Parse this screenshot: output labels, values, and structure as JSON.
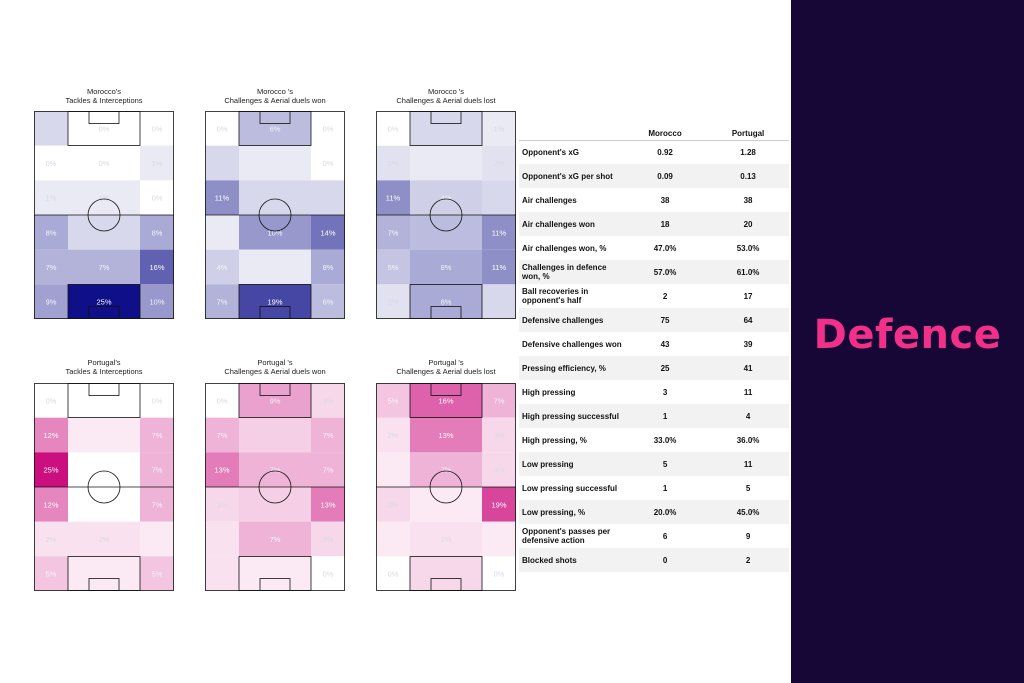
{
  "section_title": "Defence",
  "colors": {
    "panel_bg": "#170736",
    "title_accent": "#f2308a",
    "morocco_scale": "#0f0f8a",
    "portugal_scale": "#cc0f7f"
  },
  "chart_data": [
    {
      "type": "heatmap",
      "team": "Morocco",
      "title": "Morocco's\nTackles & Interceptions",
      "grid": [
        [
          null,
          "0%",
          "0%"
        ],
        [
          "0%",
          "0%",
          "1%"
        ],
        [
          "1%",
          "1%",
          "0%"
        ],
        [
          "8%",
          "3%",
          "8%"
        ],
        [
          "7%",
          "7%",
          "16%"
        ],
        [
          "9%",
          "25%",
          "10%"
        ]
      ],
      "values": [
        [
          3,
          0,
          0
        ],
        [
          0,
          0,
          1
        ],
        [
          1,
          1,
          0
        ],
        [
          8,
          3,
          8
        ],
        [
          7,
          7,
          16
        ],
        [
          9,
          25,
          10
        ]
      ]
    },
    {
      "type": "heatmap",
      "team": "Morocco",
      "title": "Morocco 's\nChallenges & Aerial duels won",
      "grid": [
        [
          "0%",
          "6%",
          "0%"
        ],
        [
          "3%",
          "",
          "0%"
        ],
        [
          "11%",
          "3%",
          "3%"
        ],
        [
          "",
          "10%",
          "14%"
        ],
        [
          "4%",
          "",
          "8%"
        ],
        [
          "7%",
          "19%",
          "6%"
        ]
      ],
      "values": [
        [
          0,
          6,
          0
        ],
        [
          3,
          1,
          0
        ],
        [
          11,
          3,
          3
        ],
        [
          1,
          10,
          14
        ],
        [
          4,
          1,
          8
        ],
        [
          7,
          19,
          6
        ]
      ]
    },
    {
      "type": "heatmap",
      "team": "Morocco",
      "title": "Morocco 's\nChallenges & Aerial duels lost",
      "grid": [
        [
          "0%",
          "3%",
          "1%"
        ],
        [
          "2%",
          "",
          "2%"
        ],
        [
          "11%",
          "4%",
          "3%"
        ],
        [
          "7%",
          "",
          "11%"
        ],
        [
          "5%",
          "8%",
          "11%"
        ],
        [
          "2%",
          "8%",
          "3%"
        ]
      ],
      "values": [
        [
          0,
          3,
          1
        ],
        [
          2,
          1,
          2
        ],
        [
          11,
          4,
          3
        ],
        [
          7,
          6,
          11
        ],
        [
          5,
          8,
          11
        ],
        [
          2,
          8,
          3
        ]
      ]
    },
    {
      "type": "heatmap",
      "team": "Portugal",
      "title": "Portugal's\nTackles & Interceptions",
      "grid": [
        [
          "0%",
          "",
          "0%"
        ],
        [
          "12%",
          "",
          "7%"
        ],
        [
          "25%",
          "",
          "7%"
        ],
        [
          "12%",
          "",
          "7%"
        ],
        [
          "2%",
          "2%",
          ""
        ],
        [
          "5%",
          "",
          "5%"
        ]
      ],
      "values": [
        [
          0,
          0,
          0
        ],
        [
          12,
          1,
          7
        ],
        [
          25,
          0,
          7
        ],
        [
          12,
          0,
          7
        ],
        [
          2,
          2,
          1
        ],
        [
          5,
          1,
          5
        ]
      ]
    },
    {
      "type": "heatmap",
      "team": "Portugal",
      "title": "Portugal 's\nChallenges & Aerial duels won",
      "grid": [
        [
          "0%",
          "9%",
          "3%"
        ],
        [
          "7%",
          "",
          "7%"
        ],
        [
          "13%",
          "7%",
          "7%"
        ],
        [
          "3%",
          "",
          "13%"
        ],
        [
          "",
          "7%",
          "3%"
        ],
        [
          "",
          "",
          "0%"
        ]
      ],
      "values": [
        [
          0,
          9,
          3
        ],
        [
          7,
          4,
          7
        ],
        [
          13,
          7,
          7
        ],
        [
          3,
          4,
          13
        ],
        [
          2,
          7,
          3
        ],
        [
          2,
          1,
          0
        ]
      ]
    },
    {
      "type": "heatmap",
      "team": "Portugal",
      "title": "Portugal 's\nChallenges & Aerial duels lost",
      "grid": [
        [
          "5%",
          "16%",
          "7%"
        ],
        [
          "2%",
          "13%",
          "3%"
        ],
        [
          "",
          "7%",
          "3%"
        ],
        [
          "3%",
          "",
          "19%"
        ],
        [
          "",
          "2%",
          ""
        ],
        [
          "0%",
          "",
          "0%"
        ]
      ],
      "values": [
        [
          5,
          16,
          7
        ],
        [
          2,
          13,
          3
        ],
        [
          1,
          7,
          3
        ],
        [
          3,
          1,
          19
        ],
        [
          1,
          2,
          1
        ],
        [
          0,
          3,
          0
        ]
      ]
    },
    {
      "type": "table",
      "columns": [
        "",
        "Morocco",
        "Portugal"
      ],
      "rows": [
        [
          "Opponent's xG",
          "0.92",
          "1.28"
        ],
        [
          "Opponent's xG per shot",
          "0.09",
          "0.13"
        ],
        [
          "Air challenges",
          "38",
          "38"
        ],
        [
          "Air challenges won",
          "18",
          "20"
        ],
        [
          "Air challenges won, %",
          "47.0%",
          "53.0%"
        ],
        [
          "Challenges in defence won, %",
          "57.0%",
          "61.0%"
        ],
        [
          "Ball recoveries in opponent's half",
          "2",
          "17"
        ],
        [
          "Defensive challenges",
          "75",
          "64"
        ],
        [
          "Defensive challenges won",
          "43",
          "39"
        ],
        [
          "Pressing efficiency, %",
          "25",
          "41"
        ],
        [
          "High pressing",
          "3",
          "11"
        ],
        [
          "High pressing successful",
          "1",
          "4"
        ],
        [
          "High pressing, %",
          "33.0%",
          "36.0%"
        ],
        [
          "Low pressing",
          "5",
          "11"
        ],
        [
          "Low pressing successful",
          "1",
          "5"
        ],
        [
          "Low pressing, %",
          "20.0%",
          "45.0%"
        ],
        [
          "Opponent's passes per defensive action",
          "6",
          "9"
        ],
        [
          "Blocked shots",
          "0",
          "2"
        ]
      ]
    }
  ]
}
